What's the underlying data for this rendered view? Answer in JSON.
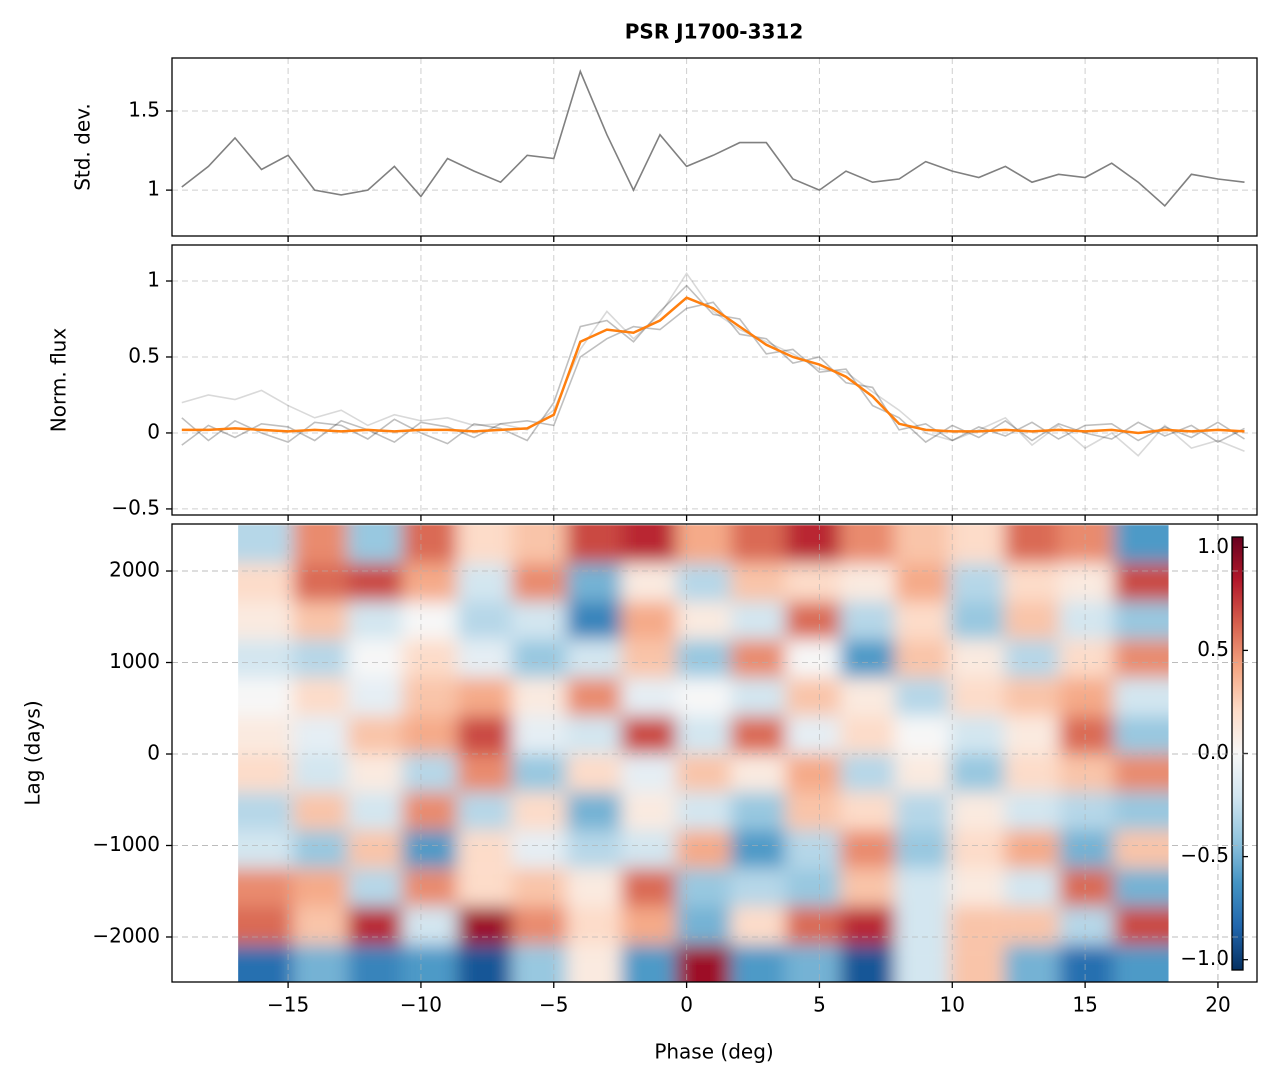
{
  "chart_data": [
    {
      "type": "line",
      "title": "PSR J1700-3312",
      "ylabel": "Std. dev.",
      "x": [
        -19,
        -18,
        -17,
        -16,
        -15,
        -14,
        -13,
        -12,
        -11,
        -10,
        -9,
        -8,
        -7,
        -6,
        -5,
        -4,
        -3,
        -2,
        -1,
        0,
        1,
        2,
        3,
        4,
        5,
        6,
        7,
        8,
        9,
        10,
        11,
        12,
        13,
        14,
        15,
        16,
        17,
        18,
        19,
        20,
        21
      ],
      "series": [
        {
          "color": "#808080",
          "values": [
            1.02,
            1.15,
            1.33,
            1.13,
            1.22,
            1.0,
            0.97,
            1.0,
            1.15,
            0.96,
            1.2,
            1.12,
            1.05,
            1.22,
            1.2,
            1.75,
            1.35,
            1.0,
            1.35,
            1.15,
            1.22,
            1.3,
            1.3,
            1.07,
            1.0,
            1.12,
            1.05,
            1.07,
            1.18,
            1.12,
            1.08,
            1.15,
            1.05,
            1.1,
            1.08,
            1.17,
            1.05,
            0.9,
            1.1,
            1.07,
            1.05
          ]
        }
      ],
      "xlim": [
        -19.37,
        21.47
      ],
      "ylim": [
        0.71,
        1.835
      ],
      "xticks": [
        {
          "value": -15,
          "label": "−15"
        },
        {
          "value": -10,
          "label": "−10"
        },
        {
          "value": -5,
          "label": "−5"
        },
        0,
        5,
        10,
        15,
        20
      ],
      "yticks": [
        1.0,
        1.5
      ],
      "grid": true
    },
    {
      "type": "line",
      "ylabel": "Norm. flux",
      "x": [
        -19,
        -18,
        -17,
        -16,
        -15,
        -14,
        -13,
        -12,
        -11,
        -10,
        -9,
        -8,
        -7,
        -6,
        -5,
        -4,
        -3,
        -2,
        -1,
        0,
        1,
        2,
        3,
        4,
        5,
        6,
        7,
        8,
        9,
        10,
        11,
        12,
        13,
        14,
        15,
        16,
        17,
        18,
        19,
        20,
        21
      ],
      "series": [
        {
          "color": "rgba(0,0,0,0.25)",
          "values": [
            0.1,
            -0.05,
            0.08,
            0.0,
            -0.06,
            0.07,
            0.05,
            -0.04,
            0.09,
            0.0,
            -0.07,
            0.06,
            0.03,
            -0.05,
            0.2,
            0.7,
            0.74,
            0.6,
            0.8,
            0.97,
            0.78,
            0.75,
            0.52,
            0.55,
            0.4,
            0.42,
            0.18,
            0.1,
            -0.06,
            0.05,
            -0.03,
            0.08,
            -0.05,
            0.06,
            0.0,
            -0.04,
            0.07,
            -0.02,
            0.05,
            -0.06,
            0.03
          ]
        },
        {
          "color": "rgba(0,0,0,0.25)",
          "values": [
            -0.08,
            0.05,
            -0.03,
            0.06,
            0.04,
            -0.05,
            0.08,
            0.02,
            -0.06,
            0.07,
            0.04,
            -0.03,
            0.06,
            0.08,
            0.05,
            0.5,
            0.62,
            0.7,
            0.68,
            0.82,
            0.86,
            0.65,
            0.62,
            0.46,
            0.5,
            0.33,
            0.3,
            0.02,
            0.06,
            -0.05,
            0.04,
            -0.02,
            0.07,
            -0.04,
            0.05,
            0.06,
            -0.05,
            0.04,
            -0.03,
            0.07,
            -0.04
          ]
        },
        {
          "color": "rgba(0,0,0,0.15)",
          "values": [
            0.2,
            0.25,
            0.22,
            0.28,
            0.18,
            0.1,
            0.15,
            0.05,
            0.12,
            0.08,
            0.1,
            0.05,
            0.06,
            0.02,
            0.15,
            0.55,
            0.8,
            0.62,
            0.78,
            1.05,
            0.8,
            0.68,
            0.6,
            0.52,
            0.42,
            0.4,
            0.27,
            0.15,
            0.0,
            -0.05,
            0.02,
            0.1,
            -0.08,
            0.05,
            -0.1,
            0.0,
            -0.15,
            0.05,
            -0.1,
            -0.05,
            -0.12
          ]
        },
        {
          "color": "#ff7f0e",
          "values": [
            0.02,
            0.02,
            0.03,
            0.02,
            0.01,
            0.02,
            0.01,
            0.02,
            0.01,
            0.02,
            0.02,
            0.01,
            0.02,
            0.03,
            0.12,
            0.6,
            0.68,
            0.66,
            0.74,
            0.89,
            0.82,
            0.7,
            0.58,
            0.5,
            0.45,
            0.37,
            0.24,
            0.06,
            0.02,
            0.01,
            0.01,
            0.02,
            0.01,
            0.02,
            0.01,
            0.02,
            0.0,
            0.02,
            0.01,
            0.02,
            0.01
          ]
        }
      ],
      "xlim": [
        -19.37,
        21.47
      ],
      "ylim": [
        -0.54,
        1.237
      ],
      "xticks": [
        {
          "value": -15,
          "label": "−15"
        },
        {
          "value": -10,
          "label": "−10"
        },
        {
          "value": -5,
          "label": "−5"
        },
        0,
        5,
        10,
        15,
        20
      ],
      "yticks": [
        {
          "value": -0.5,
          "label": "−0.5"
        },
        0.0,
        0.5,
        1.0
      ],
      "grid": true
    },
    {
      "type": "heatmap",
      "xlabel": "Phase (deg)",
      "ylabel": "Lag (days)",
      "x": [
        -15.85,
        -13.79,
        -11.73,
        -9.67,
        -7.61,
        -5.55,
        -3.49,
        -1.43,
        0.63,
        2.69,
        4.75,
        6.81,
        8.87,
        10.93,
        12.99,
        15.05,
        17.11
      ],
      "y": [
        2292,
        1875,
        1458,
        1042,
        625,
        208,
        -208,
        -625,
        -1042,
        -1458,
        -1875,
        -2292
      ],
      "z": [
        [
          -0.3,
          0.5,
          -0.4,
          0.6,
          0.2,
          0.3,
          0.7,
          0.8,
          0.4,
          0.6,
          0.8,
          0.5,
          0.3,
          0.2,
          0.6,
          0.5,
          -0.6
        ],
        [
          0.2,
          0.6,
          0.7,
          0.4,
          -0.2,
          0.5,
          -0.5,
          0.1,
          -0.3,
          0.3,
          0.2,
          0.1,
          0.4,
          -0.3,
          0.2,
          0.1,
          0.7
        ],
        [
          0.1,
          0.3,
          -0.2,
          0.0,
          -0.3,
          -0.2,
          -0.7,
          0.4,
          0.1,
          -0.2,
          0.6,
          -0.3,
          0.2,
          -0.4,
          0.3,
          -0.2,
          -0.4
        ],
        [
          -0.2,
          -0.3,
          0.0,
          0.2,
          -0.1,
          -0.4,
          -0.2,
          0.3,
          -0.4,
          0.5,
          0.0,
          -0.6,
          0.3,
          0.1,
          -0.3,
          0.2,
          0.5
        ],
        [
          0.0,
          0.2,
          -0.1,
          0.3,
          0.4,
          0.1,
          0.5,
          -0.1,
          0.0,
          -0.2,
          0.3,
          0.1,
          -0.3,
          0.2,
          0.3,
          0.4,
          -0.2
        ],
        [
          0.1,
          -0.1,
          0.3,
          0.4,
          0.7,
          -0.1,
          -0.2,
          0.7,
          -0.2,
          0.6,
          -0.1,
          0.2,
          0.0,
          -0.2,
          0.1,
          0.6,
          -0.4
        ],
        [
          0.2,
          -0.2,
          0.1,
          -0.3,
          0.5,
          -0.4,
          0.2,
          -0.1,
          0.3,
          0.1,
          0.4,
          -0.3,
          0.1,
          -0.4,
          0.2,
          0.3,
          0.5
        ],
        [
          -0.3,
          0.3,
          -0.2,
          0.5,
          -0.3,
          0.2,
          -0.5,
          0.1,
          -0.2,
          -0.4,
          0.3,
          0.2,
          -0.3,
          0.1,
          -0.2,
          -0.3,
          -0.4
        ],
        [
          -0.2,
          -0.4,
          0.3,
          -0.6,
          0.2,
          -0.1,
          -0.3,
          -0.2,
          0.4,
          -0.6,
          -0.3,
          0.5,
          -0.4,
          0.2,
          0.4,
          -0.5,
          0.3
        ],
        [
          0.5,
          0.4,
          -0.3,
          0.5,
          0.2,
          0.3,
          0.1,
          0.6,
          -0.4,
          -0.3,
          -0.4,
          0.3,
          -0.2,
          0.1,
          -0.2,
          0.6,
          -0.5
        ],
        [
          0.6,
          0.3,
          0.8,
          -0.2,
          0.9,
          0.5,
          0.2,
          0.4,
          -0.5,
          0.2,
          0.6,
          0.8,
          -0.2,
          0.3,
          0.3,
          -0.3,
          0.7
        ],
        [
          -0.8,
          -0.5,
          -0.7,
          -0.6,
          -0.9,
          -0.4,
          0.1,
          -0.6,
          0.9,
          -0.6,
          -0.5,
          -0.9,
          -0.2,
          0.3,
          -0.5,
          -0.8,
          -0.6
        ]
      ],
      "xlim": [
        -19.37,
        21.47
      ],
      "ylim": [
        -2492,
        2514
      ],
      "xticks": [
        {
          "value": -15,
          "label": "−15"
        },
        {
          "value": -10,
          "label": "−10"
        },
        {
          "value": -5,
          "label": "−5"
        },
        0,
        5,
        10,
        15,
        20
      ],
      "yticks": [
        {
          "value": -2000,
          "label": "−2000"
        },
        {
          "value": -1000,
          "label": "−1000"
        },
        0,
        1000,
        2000
      ],
      "grid": true,
      "colormap": "RdBu_r",
      "clim": [
        -1.05,
        1.05
      ],
      "cticks": [
        {
          "value": -1.0,
          "label": "−1.0"
        },
        {
          "value": -0.5,
          "label": "−0.5"
        },
        {
          "value": 0.0,
          "label": "0.0"
        },
        {
          "value": 0.5,
          "label": "0.5"
        },
        {
          "value": 1.0,
          "label": "1.0"
        }
      ]
    }
  ]
}
